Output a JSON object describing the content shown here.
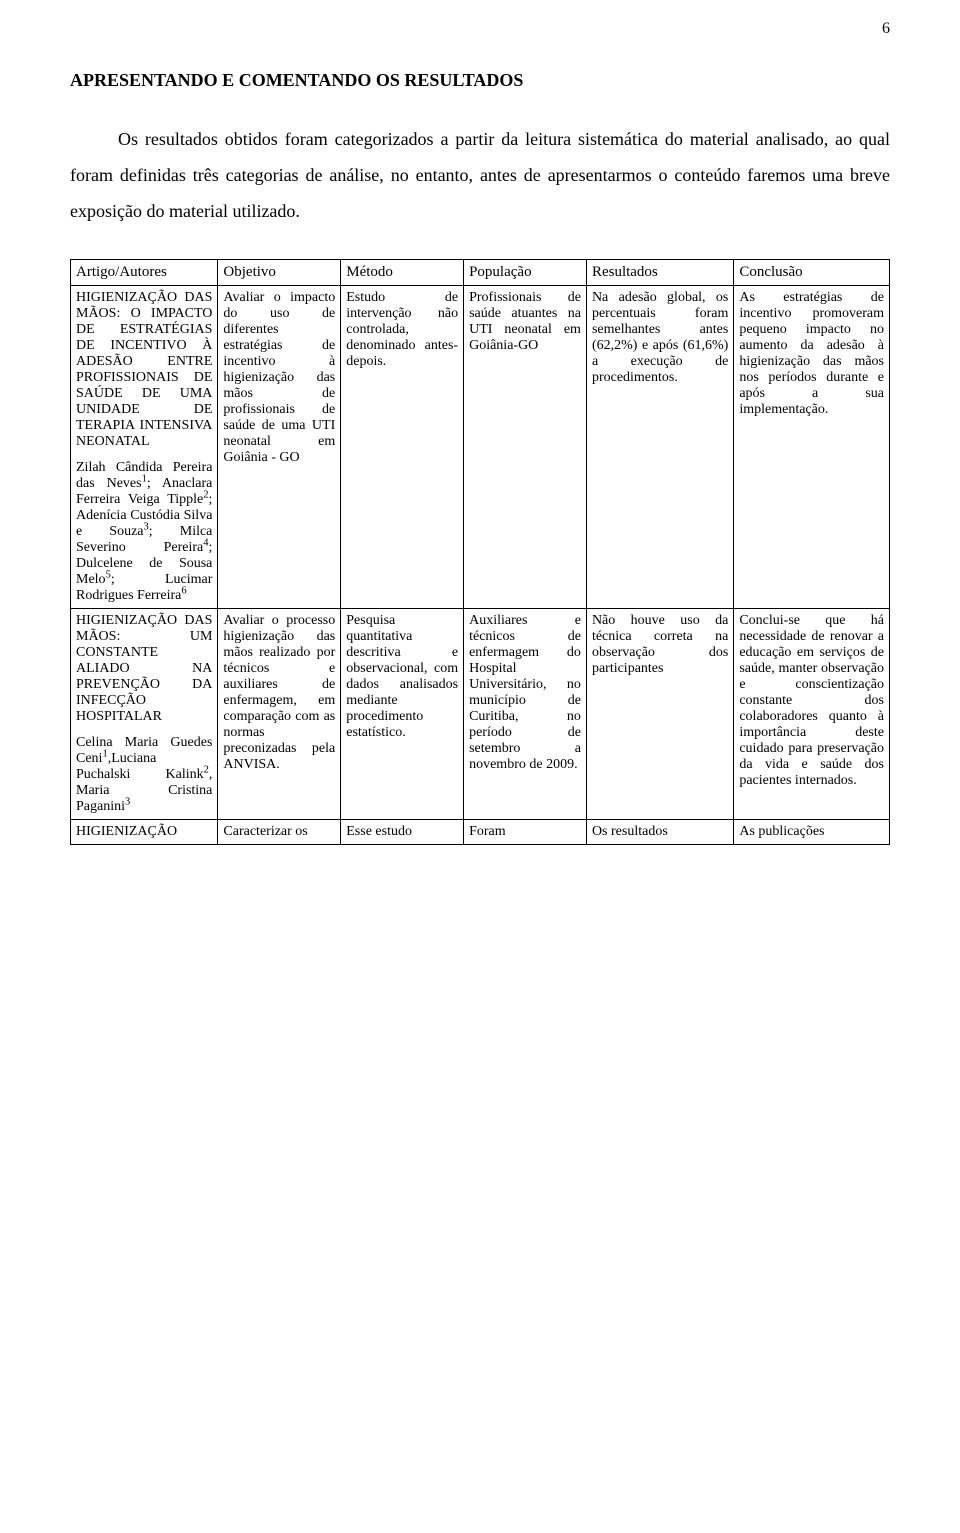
{
  "page_number": "6",
  "section_title": "APRESENTANDO E COMENTANDO OS RESULTADOS",
  "intro_text": "Os resultados obtidos foram categorizados a partir da leitura sistemática do material analisado, ao qual foram definidas três categorias de análise, no entanto, antes de apresentarmos o conteúdo faremos uma breve exposição do material utilizado.",
  "headers": [
    "Artigo/Autores",
    "Objetivo",
    "Método",
    "População",
    "Resultados",
    "Conclusão"
  ],
  "rows": [
    {
      "article_title": "HIGIENIZAÇÃO DAS MÃOS: O IMPACTO DE ESTRATÉGIAS DE INCENTIVO À ADESÃO ENTRE PROFISSIONAIS DE SAÚDE DE UMA UNIDADE DE TERAPIA INTENSIVA NEONATAL",
      "authors_html": "Zilah Cândida Pereira das Neves<sup>1</sup>; Anaclara Ferreira Veiga Tipple<sup>2</sup>; Adenícia Custódia Silva e Souza<sup>3</sup>; Milca Severino Pereira<sup>4</sup>; Dulcelene de Sousa Melo<sup>5</sup>; Lucimar Rodrigues Ferreira<sup>6</sup>",
      "objective": "Avaliar o impacto do uso de diferentes estratégias de incentivo à higienização das mãos de profissionais de saúde de uma UTI neonatal em Goiânia - GO",
      "method": "Estudo de intervenção não controlada, denominado antes-depois.",
      "population": "Profissionais de saúde atuantes na UTI neonatal em Goiânia-GO",
      "results": "Na adesão global, os percentuais foram semelhantes antes (62,2%) e após (61,6%) a execução de procedimentos.",
      "conclusion": "As estratégias de incentivo promoveram pequeno impacto no aumento da adesão à higienização das mãos nos períodos durante e após a sua implementação."
    },
    {
      "article_title": "HIGIENIZAÇÃO DAS MÃOS: UM CONSTANTE ALIADO NA PREVENÇÃO DA INFECÇÃO HOSPITALAR",
      "authors_html": "Celina Maria Guedes Ceni<sup>1</sup>,Luciana Puchalski Kalink<sup>2</sup>, Maria Cristina Paganini<sup>3</sup>",
      "objective": "Avaliar o processo higienização das mãos realizado por técnicos e auxiliares de enfermagem, em comparação com as normas preconizadas pela ANVISA.",
      "method": "Pesquisa quantitativa descritiva e observacional, com dados analisados mediante procedimento estatístico.",
      "population": "Auxiliares e técnicos de enfermagem do Hospital Universitário, no município de Curitiba, no período de setembro a novembro de 2009.",
      "results": "Não houve uso da técnica correta na observação dos participantes",
      "conclusion": "Conclui-se que há necessidade de renovar a educação em serviços de saúde, manter observação e conscientização constante dos colaboradores quanto à importância deste cuidado para preservação da vida e saúde dos pacientes internados."
    },
    {
      "article_title": "HIGIENIZAÇÃO",
      "authors_html": "",
      "objective": "Caracterizar os",
      "method": "Esse estudo",
      "population": "Foram",
      "results": "Os resultados",
      "conclusion": "As publicações"
    }
  ],
  "style": {
    "background_color": "#ffffff",
    "text_color": "#000000",
    "border_color": "#000000",
    "body_fontsize": 14,
    "title_fontsize": 18,
    "intro_fontsize": 18,
    "font_family": "Times New Roman"
  }
}
